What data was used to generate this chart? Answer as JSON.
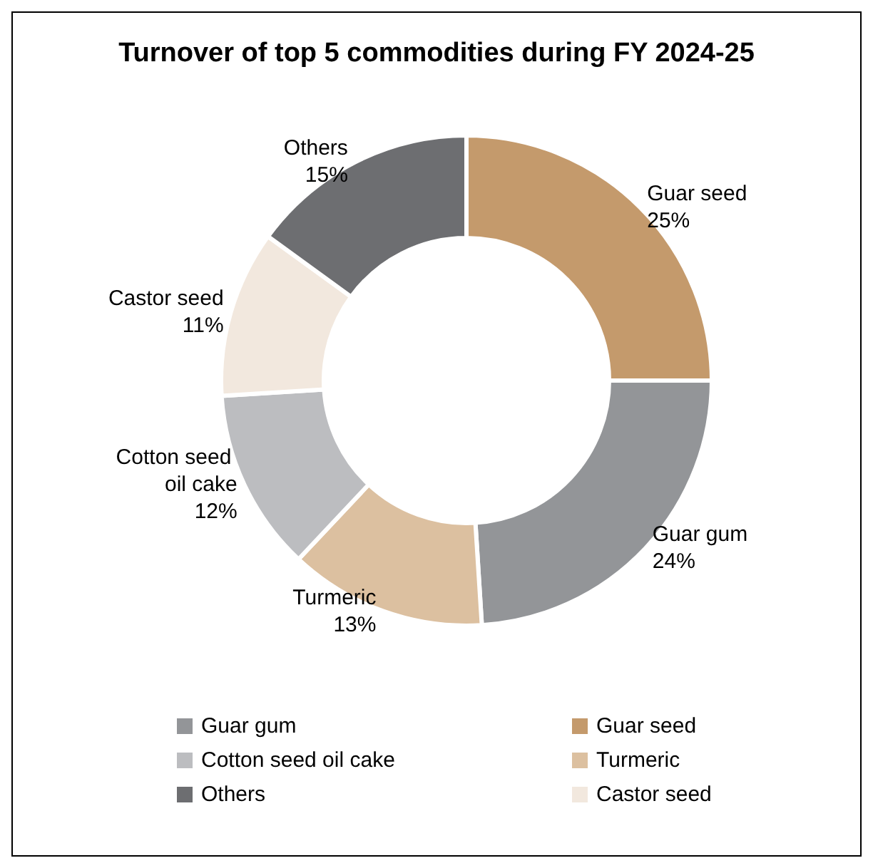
{
  "chart_data": {
    "type": "donut",
    "title": "Turnover of top 5 commodities during FY 2024-25",
    "categories": [
      "Guar seed",
      "Guar gum",
      "Turmeric",
      "Cotton seed oil cake",
      "Castor seed",
      "Others"
    ],
    "values": [
      25,
      24,
      13,
      12,
      11,
      15
    ],
    "value_labels": [
      "25%",
      "24%",
      "13%",
      "12%",
      "11%",
      "15%"
    ],
    "colors": [
      "#c49a6c",
      "#939598",
      "#dcc0a0",
      "#bcbdc0",
      "#f2e8de",
      "#6d6e71"
    ],
    "legend": "bottom"
  }
}
